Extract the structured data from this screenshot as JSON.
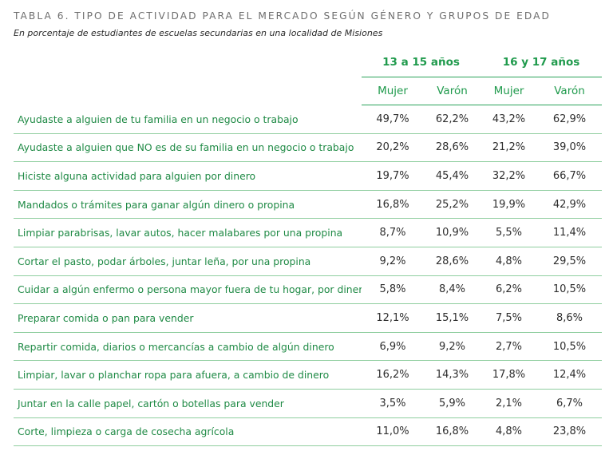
{
  "title": "TABLA 6. TIPO DE ACTIVIDAD PARA EL MERCADO SEGÚN GÉNERO Y GRUPOS DE EDAD",
  "subtitle": "En porcentaje de estudiantes de escuelas secundarias en una localidad de Misiones",
  "groups": [
    "13 a 15 años",
    "16 y 17 años"
  ],
  "subheaders": [
    "Mujer",
    "Varón",
    "Mujer",
    "Varón"
  ],
  "rows": [
    {
      "label": "Ayudaste a alguien de tu familia en un negocio o trabajo",
      "values": [
        "49,7%",
        "62,2%",
        "43,2%",
        "62,9%"
      ]
    },
    {
      "label": "Ayudaste a alguien que NO es de su familia en un negocio o trabajo",
      "values": [
        "20,2%",
        "28,6%",
        "21,2%",
        "39,0%"
      ]
    },
    {
      "label": "Hiciste alguna actividad para alguien por dinero",
      "values": [
        "19,7%",
        "45,4%",
        "32,2%",
        "66,7%"
      ]
    },
    {
      "label": "Mandados o trámites para ganar algún dinero o propina",
      "values": [
        "16,8%",
        "25,2%",
        "19,9%",
        "42,9%"
      ]
    },
    {
      "label": "Limpiar parabrisas, lavar autos, hacer malabares por una propina",
      "values": [
        "8,7%",
        "10,9%",
        "5,5%",
        "11,4%"
      ]
    },
    {
      "label": "Cortar el pasto, podar árboles, juntar leña, por una propina",
      "values": [
        "9,2%",
        "28,6%",
        "4,8%",
        "29,5%"
      ]
    },
    {
      "label": "Cuidar a algún enfermo o persona mayor fuera de tu hogar, por dinero",
      "values": [
        "5,8%",
        "8,4%",
        "6,2%",
        "10,5%"
      ]
    },
    {
      "label": "Preparar comida o pan para vender",
      "values": [
        "12,1%",
        "15,1%",
        "7,5%",
        "8,6%"
      ]
    },
    {
      "label": "Repartir comida, diarios o mercancías a cambio de algún dinero",
      "values": [
        "6,9%",
        "9,2%",
        "2,7%",
        "10,5%"
      ]
    },
    {
      "label": "Limpiar, lavar o planchar ropa para afuera, a cambio de dinero",
      "values": [
        "16,2%",
        "14,3%",
        "17,8%",
        "12,4%"
      ]
    },
    {
      "label": "Juntar en la calle papel, cartón o botellas para vender",
      "values": [
        "3,5%",
        "5,9%",
        "2,1%",
        "6,7%"
      ]
    },
    {
      "label": "Corte, limpieza o carga de cosecha agrícola",
      "values": [
        "11,0%",
        "16,8%",
        "4,8%",
        "23,8%"
      ]
    }
  ],
  "colors": {
    "accent": "#1f9a4c",
    "row_rule": "#8fce9f",
    "title_gray": "#6e6e6e"
  }
}
